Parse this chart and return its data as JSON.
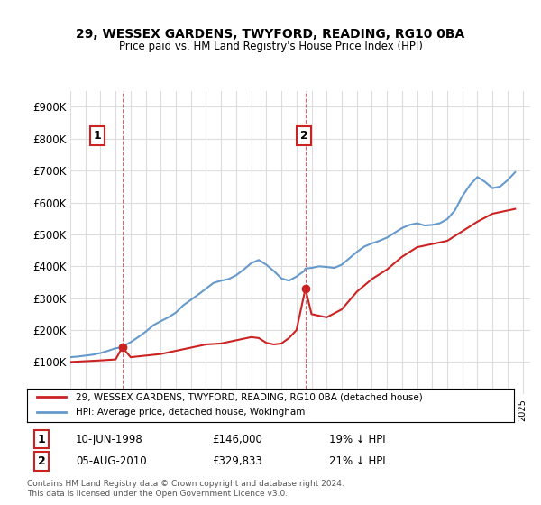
{
  "title": "29, WESSEX GARDENS, TWYFORD, READING, RG10 0BA",
  "subtitle": "Price paid vs. HM Land Registry's House Price Index (HPI)",
  "ylabel_max": 900000,
  "background_color": "#ffffff",
  "grid_color": "#dddddd",
  "sale1": {
    "date_num": 1998.45,
    "price": 146000,
    "label": "1",
    "hpi_pct": "19% ↓ HPI",
    "date_str": "10-JUN-1998"
  },
  "sale2": {
    "date_num": 2010.59,
    "price": 329833,
    "label": "2",
    "hpi_pct": "21% ↓ HPI",
    "date_str": "05-AUG-2010"
  },
  "hpi_line_color": "#6699cc",
  "price_line_color": "#cc2222",
  "vline_color": "#cc2222",
  "legend_label_price": "29, WESSEX GARDENS, TWYFORD, READING, RG10 0BA (detached house)",
  "legend_label_hpi": "HPI: Average price, detached house, Wokingham",
  "footer": "Contains HM Land Registry data © Crown copyright and database right 2024.\nThis data is licensed under the Open Government Licence v3.0.",
  "xmin": 1995,
  "xmax": 2025.5,
  "ymin": 0,
  "ymax": 950000,
  "hpi_data_x": [
    1995,
    1995.5,
    1996,
    1996.5,
    1997,
    1997.5,
    1998,
    1998.45,
    1998.5,
    1999,
    1999.5,
    2000,
    2000.5,
    2001,
    2001.5,
    2002,
    2002.5,
    2003,
    2003.5,
    2004,
    2004.5,
    2005,
    2005.5,
    2006,
    2006.5,
    2007,
    2007.5,
    2008,
    2008.5,
    2009,
    2009.5,
    2010,
    2010.5,
    2010.59,
    2011,
    2011.5,
    2012,
    2012.5,
    2013,
    2013.5,
    2014,
    2014.5,
    2015,
    2015.5,
    2016,
    2016.5,
    2017,
    2017.5,
    2018,
    2018.5,
    2019,
    2019.5,
    2020,
    2020.5,
    2021,
    2021.5,
    2022,
    2022.5,
    2023,
    2023.5,
    2024,
    2024.5
  ],
  "hpi_data_y": [
    115000,
    117000,
    120000,
    123000,
    128000,
    135000,
    143000,
    146000,
    150000,
    162000,
    178000,
    195000,
    215000,
    228000,
    240000,
    255000,
    278000,
    295000,
    312000,
    330000,
    348000,
    355000,
    360000,
    372000,
    390000,
    410000,
    420000,
    405000,
    385000,
    362000,
    355000,
    368000,
    385000,
    393000,
    395000,
    400000,
    398000,
    395000,
    405000,
    425000,
    445000,
    462000,
    472000,
    480000,
    490000,
    505000,
    520000,
    530000,
    535000,
    528000,
    530000,
    535000,
    548000,
    575000,
    620000,
    655000,
    680000,
    665000,
    645000,
    650000,
    670000,
    695000
  ],
  "price_data_x": [
    1995,
    1997,
    1998,
    1998.45,
    1999,
    2000,
    2001,
    2002,
    2003,
    2004,
    2005,
    2006,
    2007,
    2007.5,
    2008,
    2008.5,
    2009,
    2009.5,
    2010,
    2010.59,
    2011,
    2012,
    2013,
    2014,
    2015,
    2016,
    2017,
    2018,
    2019,
    2020,
    2021,
    2022,
    2023,
    2024,
    2024.5
  ],
  "price_data_y": [
    100000,
    105000,
    108000,
    146000,
    115000,
    120000,
    125000,
    135000,
    145000,
    155000,
    158000,
    168000,
    178000,
    175000,
    160000,
    155000,
    158000,
    175000,
    200000,
    329833,
    250000,
    240000,
    265000,
    320000,
    360000,
    390000,
    430000,
    460000,
    470000,
    480000,
    510000,
    540000,
    565000,
    575000,
    580000
  ]
}
